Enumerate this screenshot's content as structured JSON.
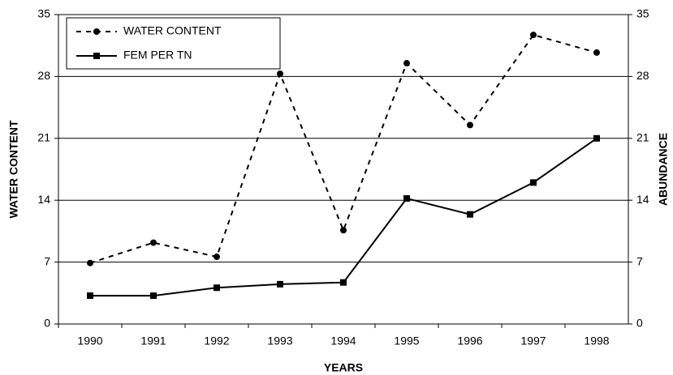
{
  "chart_data": {
    "type": "line",
    "categories": [
      "1990",
      "1991",
      "1992",
      "1993",
      "1994",
      "1995",
      "1996",
      "1997",
      "1998"
    ],
    "series": [
      {
        "name": "WATER CONTENT",
        "color": "#000000",
        "line_style": "dashed",
        "marker": "circle",
        "axis": "y",
        "values": [
          6.9,
          9.2,
          7.6,
          28.3,
          10.6,
          29.5,
          22.5,
          32.7,
          30.7
        ]
      },
      {
        "name": "FEM PER TN",
        "color": "#000000",
        "line_style": "solid",
        "marker": "square",
        "axis": "y2",
        "values": [
          3.2,
          3.2,
          4.1,
          4.5,
          4.7,
          14.2,
          12.4,
          16.0,
          21.0
        ]
      }
    ],
    "xlabel": "YEARS",
    "ylabel": "WATER CONTENT",
    "y2label": "ABUNDANCE",
    "ylim": [
      0,
      35
    ],
    "yticks": [
      0,
      7,
      14,
      21,
      28,
      35
    ],
    "y2lim": [
      0,
      35
    ],
    "y2ticks": [
      0,
      7,
      14,
      21,
      28,
      35
    ],
    "grid": true,
    "legend": "upper left"
  }
}
